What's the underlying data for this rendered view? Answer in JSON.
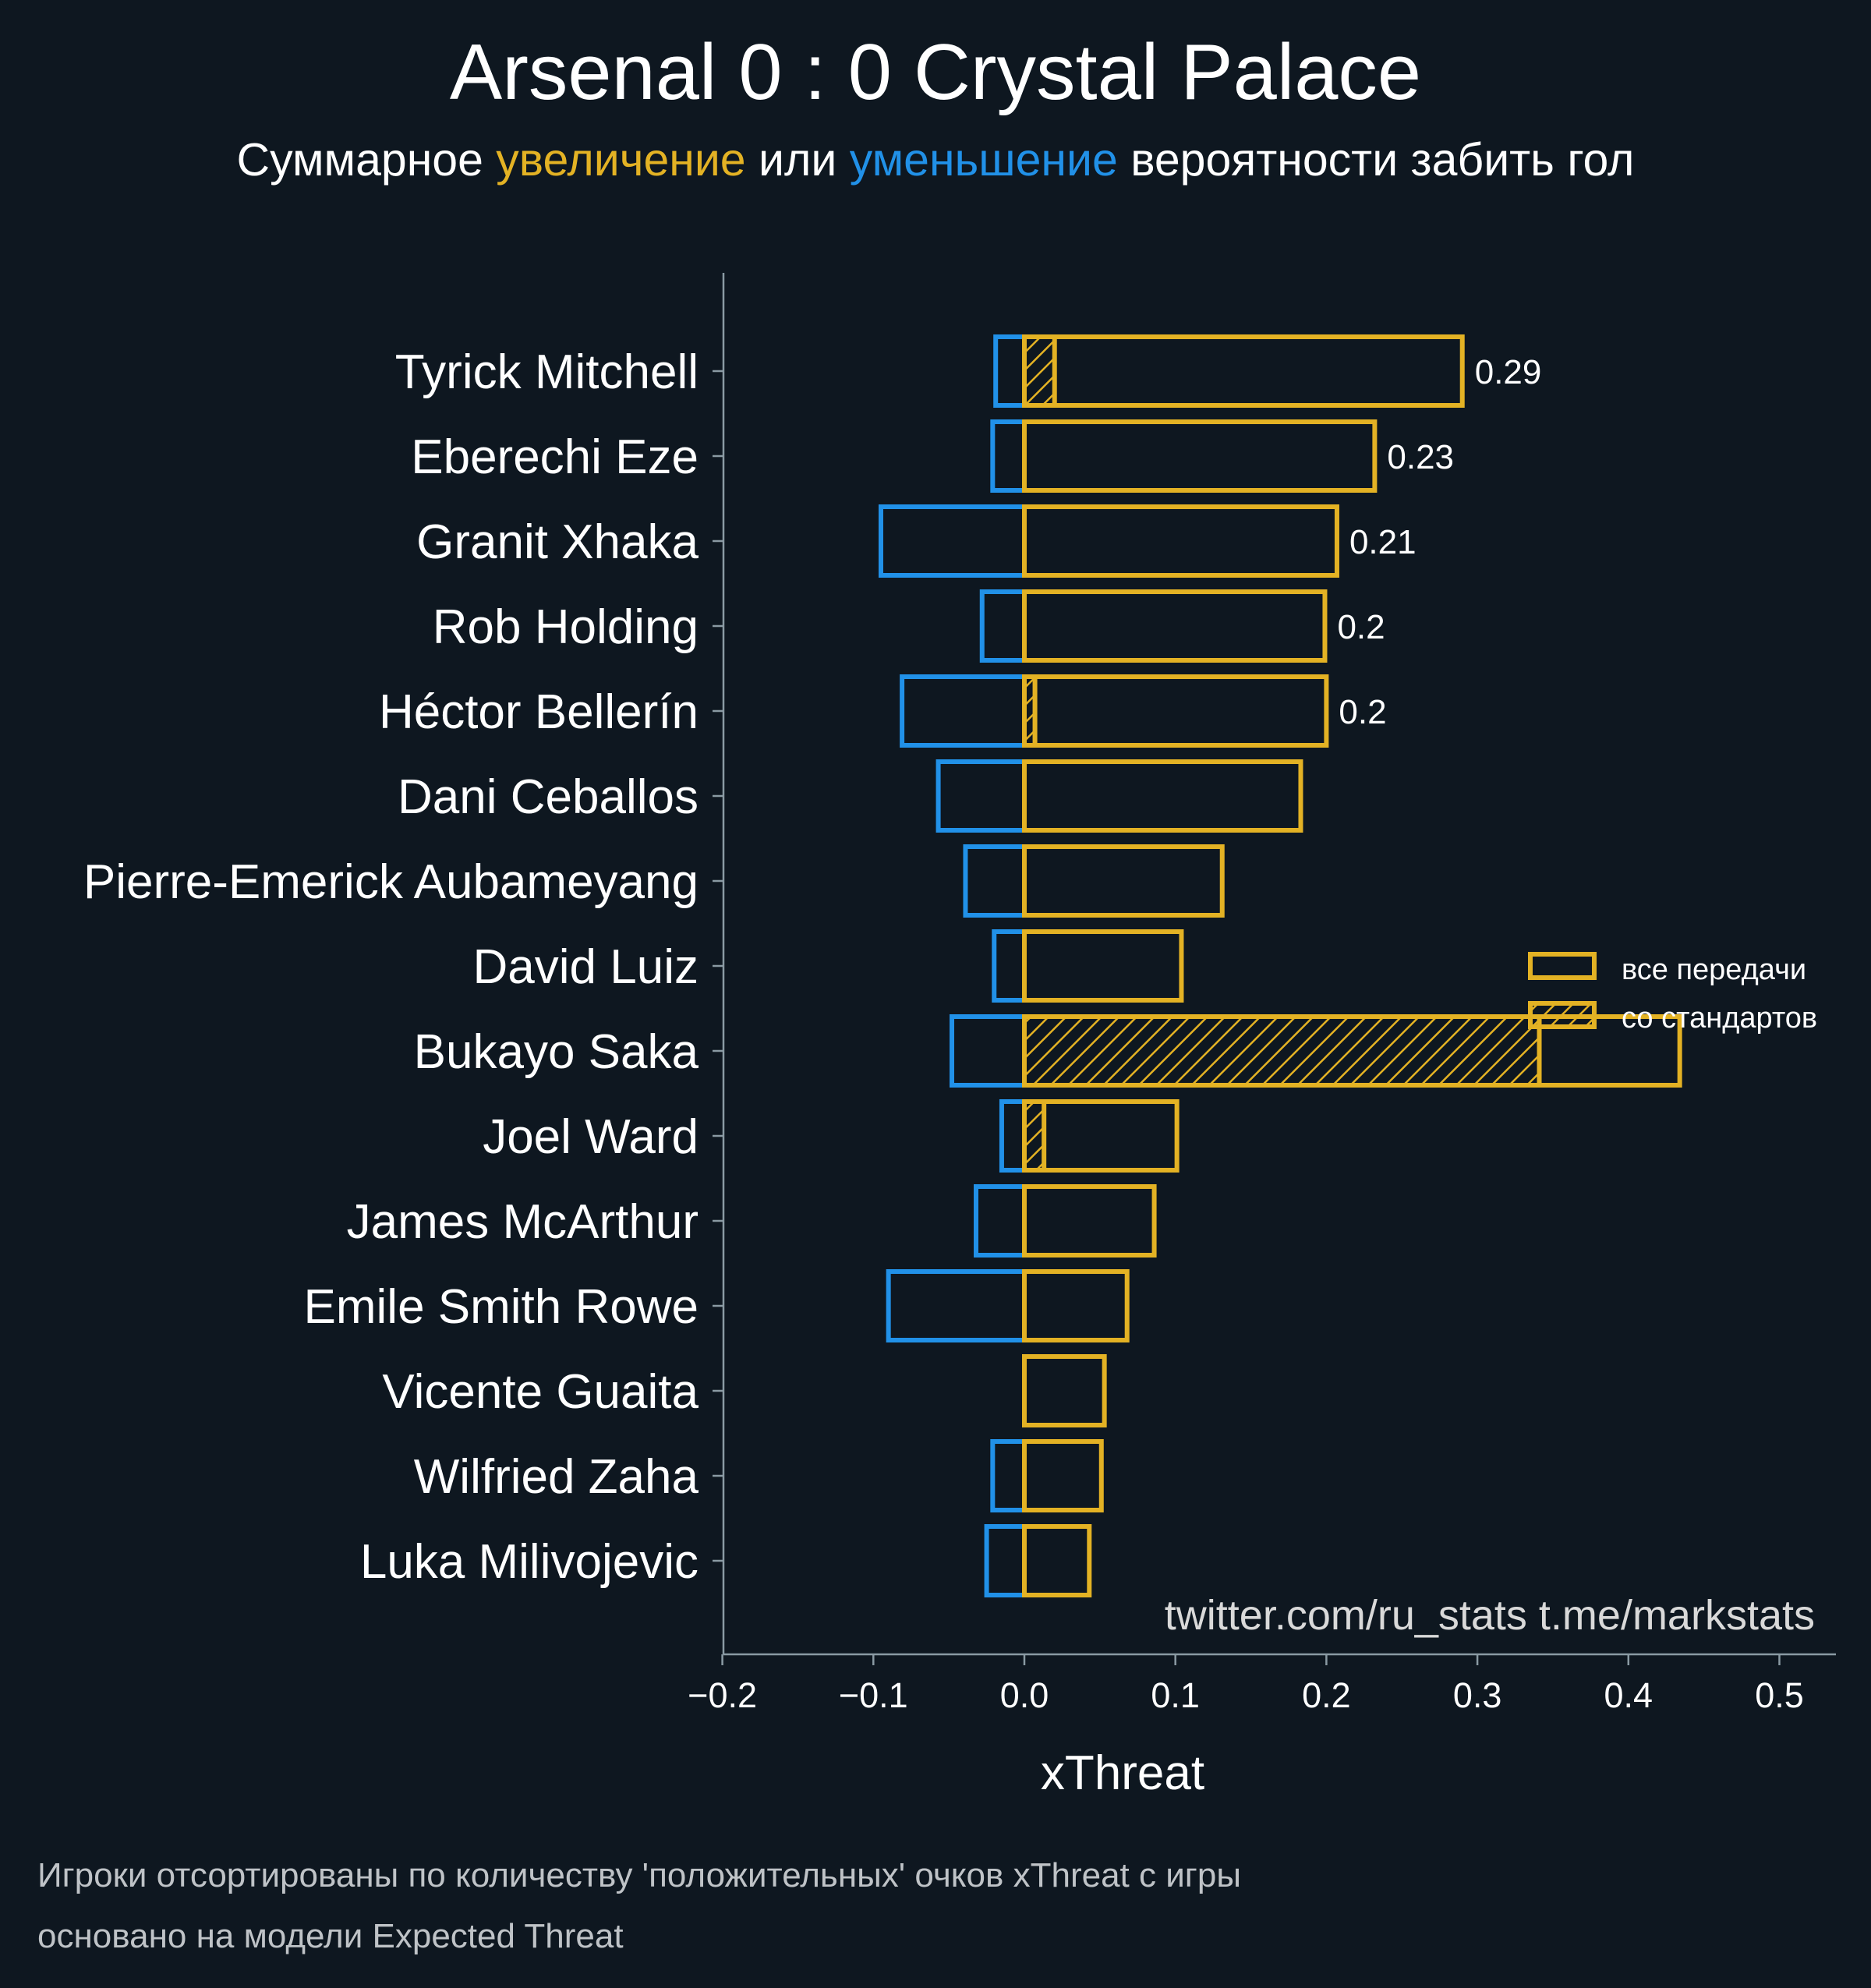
{
  "title": "Arsenal 0 : 0 Crystal Palace",
  "subtitle": {
    "prefix": "Суммарное ",
    "increase": "увеличение",
    "middle": " или ",
    "decrease": "уменьшение",
    "suffix": " вероятности забить гол"
  },
  "credits": "twitter.com/ru_stats  t.me/markstats",
  "footnotes": [
    "Игроки отсортированы по количеству 'положительных' очков xThreat с игры",
    "основано на модели Expected Threat"
  ],
  "colors": {
    "positive": "#e3b224",
    "negative": "#2191e8",
    "background": "#0e1720",
    "axis": "#8a9aa3"
  },
  "chart_data": {
    "type": "bar",
    "orientation": "horizontal",
    "xlabel": "xThreat",
    "xlim": [
      -0.2,
      0.54
    ],
    "xticks": [
      -0.2,
      -0.1,
      0.0,
      0.1,
      0.2,
      0.3,
      0.4,
      0.5
    ],
    "xtick_labels": [
      "−0.2",
      "−0.1",
      "0.0",
      "0.1",
      "0.2",
      "0.3",
      "0.4",
      "0.5"
    ],
    "legend": {
      "position": "right",
      "entries": [
        "все передачи",
        "со стандартов"
      ]
    },
    "categories": [
      "Tyrick Mitchell",
      "Eberechi Eze",
      "Granit Xhaka",
      "Rob Holding",
      "Héctor Bellerín",
      "Dani Ceballos",
      "Pierre-Emerick Aubameyang",
      "David Luiz",
      "Bukayo Saka",
      "Joel Ward",
      "James McArthur",
      "Emile Smith Rowe",
      "Vicente Guaita",
      "Wilfried Zaha",
      "Luka Milivojevic"
    ],
    "series": [
      {
        "name": "все передачи",
        "positive": [
          0.29,
          0.232,
          0.207,
          0.199,
          0.2,
          0.183,
          0.131,
          0.104,
          0.434,
          0.101,
          0.086,
          0.068,
          0.053,
          0.051,
          0.043
        ],
        "negative": [
          -0.019,
          -0.021,
          -0.095,
          -0.028,
          -0.081,
          -0.057,
          -0.039,
          -0.02,
          -0.048,
          -0.015,
          -0.032,
          -0.09,
          0.0,
          -0.021,
          -0.025
        ]
      },
      {
        "name": "со стандартов",
        "positive": [
          0.02,
          0.0,
          0.0,
          0.0,
          0.007,
          0.0,
          0.0,
          0.0,
          0.341,
          0.013,
          0.0,
          0.0,
          0.0,
          0.0,
          0.0
        ]
      }
    ],
    "value_labels": [
      "0.29",
      "0.23",
      "0.21",
      "0.2",
      "0.2"
    ]
  }
}
